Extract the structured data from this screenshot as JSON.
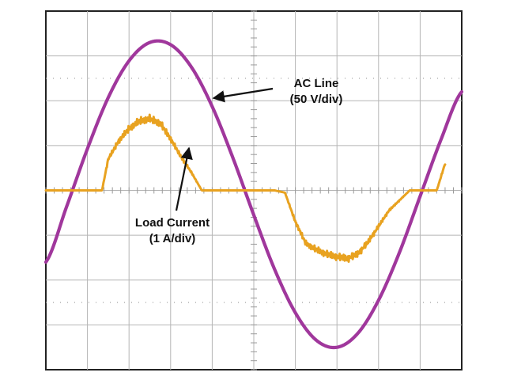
{
  "chart_data": {
    "type": "line",
    "grid": true,
    "divisions": {
      "horizontal": 10,
      "vertical": 8
    },
    "xlim": [
      0,
      10
    ],
    "ylim": [
      -4,
      4
    ],
    "series": [
      {
        "name": "AC Line",
        "color": "#a0379c",
        "x": [
          0.0,
          0.5,
          1.0,
          1.5,
          2.0,
          2.5,
          3.0,
          3.5,
          4.0,
          4.5,
          5.0,
          5.5,
          6.0,
          6.5,
          7.0,
          7.5,
          8.0,
          8.5,
          9.0,
          9.5,
          10.0
        ],
        "y": [
          -1.6,
          -0.36,
          0.93,
          2.07,
          2.89,
          3.3,
          3.25,
          2.75,
          1.87,
          0.72,
          -0.55,
          -1.76,
          -2.73,
          -3.34,
          -3.5,
          -3.19,
          -2.45,
          -1.39,
          -0.13,
          1.13,
          2.2
        ]
      },
      {
        "name": "Load Current",
        "color": "#e8a220",
        "x": [
          0.0,
          1.35,
          1.5,
          1.75,
          2.0,
          2.25,
          2.5,
          2.75,
          3.0,
          3.25,
          3.5,
          3.75,
          4.0,
          5.5,
          5.75,
          6.0,
          6.25,
          6.5,
          6.75,
          7.0,
          7.25,
          7.5,
          7.75,
          8.0,
          8.25,
          8.75,
          9.25,
          9.4,
          9.6
        ],
        "y": [
          0.0,
          0.0,
          0.7,
          1.1,
          1.38,
          1.55,
          1.6,
          1.5,
          1.15,
          0.75,
          0.4,
          0.0,
          0.0,
          0.0,
          -0.05,
          -0.7,
          -1.18,
          -1.32,
          -1.42,
          -1.48,
          -1.52,
          -1.42,
          -1.15,
          -0.8,
          -0.45,
          0.0,
          0.0,
          0.0,
          0.6
        ]
      }
    ],
    "annotations": [
      {
        "line1": "AC Line",
        "line2": "(50 V/div)",
        "series": "AC Line"
      },
      {
        "line1": "Load Current",
        "line2": "(1 A/div)",
        "series": "Load Current"
      }
    ]
  }
}
